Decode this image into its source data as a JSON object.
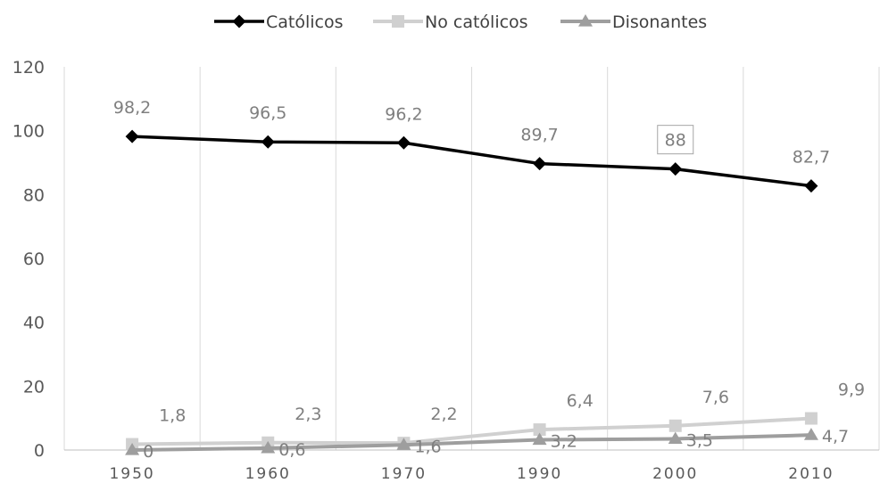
{
  "chart_data": {
    "type": "line",
    "categories": [
      "1950",
      "1960",
      "1970",
      "1990",
      "2000",
      "2010"
    ],
    "series": [
      {
        "name": "Católicos",
        "values": [
          98.2,
          96.5,
          96.2,
          89.7,
          88,
          82.7
        ],
        "labels": [
          "98,2",
          "96,5",
          "96,2",
          "89,7",
          "88",
          "82,7"
        ],
        "color": "#000000",
        "marker": "diamond"
      },
      {
        "name": "No católicos",
        "values": [
          1.8,
          2.3,
          2.2,
          6.4,
          7.6,
          9.9
        ],
        "labels": [
          "1,8",
          "2,3",
          "2,2",
          "6,4",
          "7,6",
          "9,9"
        ],
        "color": "#d0d0d0",
        "marker": "square"
      },
      {
        "name": "Disonantes",
        "values": [
          0,
          0.6,
          1.6,
          3.2,
          3.5,
          4.7
        ],
        "labels": [
          "0",
          "0,6",
          "1,6",
          "3,2",
          "3,5",
          "4,7"
        ],
        "color": "#9e9e9e",
        "marker": "triangle"
      }
    ],
    "y_ticks": [
      "0",
      "20",
      "40",
      "60",
      "80",
      "100",
      "120"
    ],
    "ylim": [
      0,
      120
    ],
    "title": "",
    "xlabel": "",
    "ylabel": "",
    "grid": "vertical",
    "legend_position": "top-center",
    "boxed_label": "88"
  }
}
